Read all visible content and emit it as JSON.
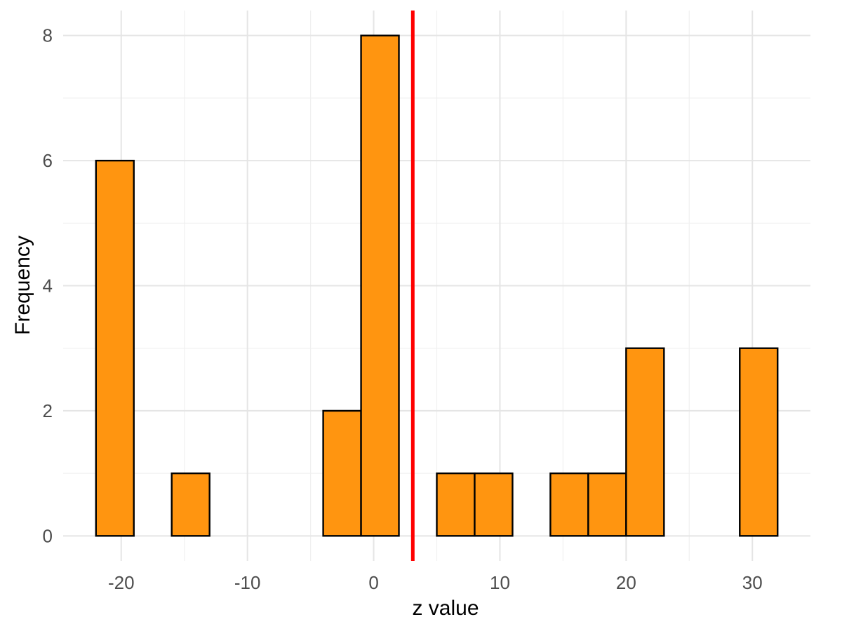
{
  "chart_data": {
    "type": "histogram",
    "xlabel": "z value",
    "ylabel": "Frequency",
    "xlim": [
      -24.6,
      34.6
    ],
    "ylim": [
      -0.4,
      8.4
    ],
    "x_ticks": [
      -20,
      -10,
      0,
      10,
      20,
      30
    ],
    "y_ticks": [
      0,
      2,
      4,
      6,
      8
    ],
    "bin_width": 3,
    "bins": [
      {
        "start": -22,
        "end": -19,
        "count": 6
      },
      {
        "start": -19,
        "end": -16,
        "count": 0
      },
      {
        "start": -16,
        "end": -13,
        "count": 1
      },
      {
        "start": -13,
        "end": -10,
        "count": 0
      },
      {
        "start": -10,
        "end": -7,
        "count": 0
      },
      {
        "start": -7,
        "end": -4,
        "count": 0
      },
      {
        "start": -4,
        "end": -1,
        "count": 2
      },
      {
        "start": -1,
        "end": 2,
        "count": 8
      },
      {
        "start": 2,
        "end": 5,
        "count": 0
      },
      {
        "start": 5,
        "end": 8,
        "count": 1
      },
      {
        "start": 8,
        "end": 11,
        "count": 1
      },
      {
        "start": 11,
        "end": 14,
        "count": 0
      },
      {
        "start": 14,
        "end": 17,
        "count": 1
      },
      {
        "start": 17,
        "end": 20,
        "count": 1
      },
      {
        "start": 20,
        "end": 23,
        "count": 3
      },
      {
        "start": 23,
        "end": 26,
        "count": 0
      },
      {
        "start": 26,
        "end": 29,
        "count": 0
      },
      {
        "start": 29,
        "end": 32,
        "count": 3
      }
    ],
    "reference_line_x": 3.1,
    "bar_fill": "#FF9510",
    "bar_outline": "#000000",
    "reference_line_color": "#FF0000",
    "grid": true,
    "legend": "none"
  }
}
